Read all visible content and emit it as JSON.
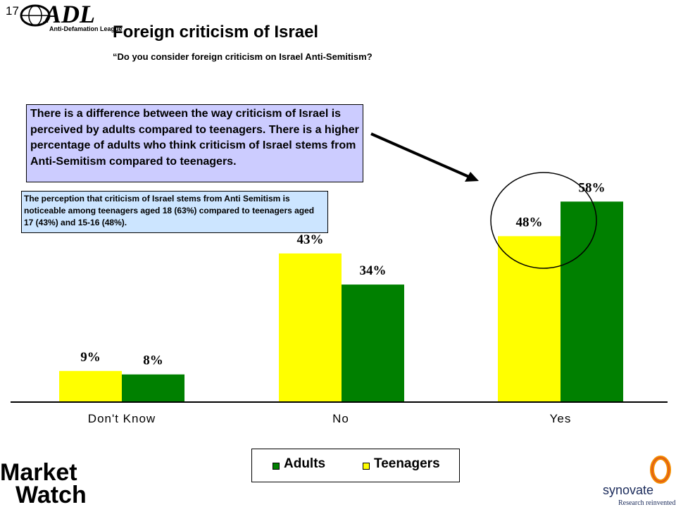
{
  "slide": {
    "number": "17",
    "title": "Foreign criticism of Israel",
    "subtitle": "“Do you consider foreign criticism on Israel Anti-Semitism?"
  },
  "callouts": {
    "main": "There is a difference between the way criticism of Israel is perceived by adults compared to teenagers. There is a higher percentage of adults who think criticism of Israel stems from Anti-Semitism compared to teenagers.",
    "teens": "The perception that criticism of Israel stems from Anti Semitism is noticeable among teenagers aged 18 (63%) compared to teenagers aged 17 (43%) and 15-16 (48%)."
  },
  "logos": {
    "adl_text": "ADL",
    "adl_subtext": "Anti-Defamation League",
    "marketwatch_line1": "Market",
    "marketwatch_line2": "Watch",
    "synovate_name": "synovate",
    "synovate_tagline": "Research reinvented"
  },
  "colors": {
    "teenagers": "#ffff00",
    "adults": "#008000",
    "callout_main_bg": "#ccccff",
    "callout_teens_bg": "#cce5ff"
  },
  "chart_data": {
    "type": "bar",
    "categories": [
      "Don't Know",
      "No",
      "Yes"
    ],
    "series": [
      {
        "name": "Teenagers",
        "values": [
          9,
          43,
          48
        ],
        "labels": [
          "9%",
          "43%",
          "48%"
        ],
        "color": "#ffff00"
      },
      {
        "name": "Adults",
        "values": [
          8,
          34,
          58
        ],
        "labels": [
          "8%",
          "34%",
          "58%"
        ],
        "color": "#008000"
      }
    ],
    "ylim": [
      0,
      66
    ],
    "grid": false,
    "legend_position": "bottom",
    "legend_order": [
      "Adults",
      "Teenagers"
    ],
    "annotation": "circle around Yes bars"
  }
}
